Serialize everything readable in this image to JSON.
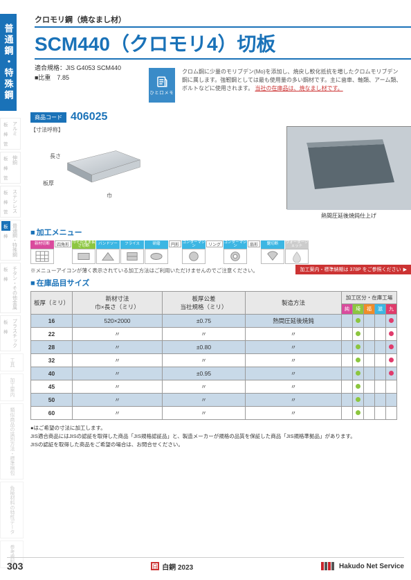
{
  "side_tab": "普通鋼・特殊鋼",
  "header": {
    "subtitle": "クロモリ鋼（焼なまし材）",
    "title": "SCM440（クロモリ4）切板",
    "spec1": "適合規格：JIS G4053 SCM440",
    "spec2": "■比重　7.85"
  },
  "memo": {
    "icon_label": "ひと口メモ",
    "text_main": "クロム鋼に少量のモリブデン(Mo)を添加し、焼戻し軟化抵抗を増したクロムモリブデン鋼に属します。強靭鋼としては最も使用量の多い鋼材です。主に歯車、軸類、アーム類、ボルトなどに使用されます。",
    "text_hl": "当社の在庫品は、焼なまし材です。"
  },
  "product_code": {
    "label": "商品コード",
    "value": "406025"
  },
  "dim_label": "【寸法呼称】",
  "dim_len": "長さ",
  "dim_wid": "巾",
  "dim_thk": "板厚",
  "photo_caption": "熱間圧延後焼鈍仕上げ",
  "sec_menu": "加工メニュー",
  "menu_groups": [
    "四角形",
    "円形",
    "リング",
    "扇形"
  ],
  "menu_items": [
    {
      "label": "新材切断",
      "color": "#d94b9d",
      "icon": "table"
    },
    {
      "label": "巾そのまま長さ切断",
      "color": "#8cc63f",
      "icon": "rect"
    },
    {
      "label": "バンドソー",
      "color": "#3cb6e3",
      "icon": "band"
    },
    {
      "label": "フライス",
      "color": "#3cb6e3",
      "icon": "mill"
    },
    {
      "label": "研磨",
      "color": "#3cb6e3",
      "icon": "grind"
    },
    {
      "label": "コンターマシン",
      "color": "#3cb6e3",
      "icon": "circle"
    },
    {
      "label": "コンターマシン",
      "color": "#3cb6e3",
      "icon": "ring"
    },
    {
      "label": "鋸切断",
      "color": "#3cb6e3",
      "icon": "fan"
    },
    {
      "label": "ウォータージェット",
      "color": "#cccccc",
      "icon": "water"
    }
  ],
  "menu_note": "※メニューアイコンが薄く表示されている加工方法はご利用いただけませんのでご注意ください。",
  "delivery_badge": "加工案内・標準納期は 378P をご参照ください",
  "sec_stock": "在庫品目サイズ",
  "table": {
    "headers": [
      "板厚（ミリ）",
      "新材寸法\n巾×長さ（ミリ）",
      "板厚公差\n当社規格（ミリ）",
      "製造方法",
      "加工区分・在庫工場"
    ],
    "sub_headers": [
      "純",
      "埼",
      "福",
      "滋",
      "九"
    ],
    "sub_colors": [
      "#d94b9d",
      "#8cc63f",
      "#f08c28",
      "#3cb6e3",
      "#e03c6c"
    ],
    "rows": [
      {
        "t": "16",
        "s": "520×2000",
        "tol": "±0.75",
        "m": "熱間圧延後焼鈍",
        "d": [
          false,
          true,
          false,
          false,
          true
        ]
      },
      {
        "t": "22",
        "s": "〃",
        "tol": "〃",
        "m": "〃",
        "d": [
          false,
          true,
          false,
          false,
          true
        ]
      },
      {
        "t": "28",
        "s": "〃",
        "tol": "±0.80",
        "m": "〃",
        "d": [
          false,
          true,
          false,
          false,
          true
        ]
      },
      {
        "t": "32",
        "s": "〃",
        "tol": "〃",
        "m": "〃",
        "d": [
          false,
          true,
          false,
          false,
          true
        ]
      },
      {
        "t": "40",
        "s": "〃",
        "tol": "±0.95",
        "m": "〃",
        "d": [
          false,
          true,
          false,
          false,
          true
        ]
      },
      {
        "t": "45",
        "s": "〃",
        "tol": "〃",
        "m": "〃",
        "d": [
          false,
          true,
          false,
          false,
          false
        ]
      },
      {
        "t": "50",
        "s": "〃",
        "tol": "〃",
        "m": "〃",
        "d": [
          false,
          true,
          false,
          false,
          false
        ]
      },
      {
        "t": "60",
        "s": "〃",
        "tol": "〃",
        "m": "〃",
        "d": [
          false,
          true,
          false,
          false,
          false
        ]
      }
    ]
  },
  "notes": [
    "●はご希望の寸法に加工します。",
    "JIS適合商品にはJISの認証を取得した商品「JIS規格認証品」と、製造メーカーが規格の品質を保証した商品「JIS規格準拠品」があります。",
    "JISの認証を取得した商品をご希望の場合は、お問合せください。"
  ],
  "side_cats": [
    {
      "name": "アルミ",
      "items": [
        "板",
        "棒",
        "管"
      ]
    },
    {
      "name": "伸銅",
      "items": [
        "板",
        "棒",
        "管"
      ]
    },
    {
      "name": "ステンレス",
      "items": [
        "板",
        "棒",
        "管"
      ]
    },
    {
      "name": "普通鋼・特殊鋼",
      "items": [
        "板",
        "棒"
      ],
      "active_idx": 0
    },
    {
      "name": "チタン・その他金属",
      "items": [
        "板",
        "棒"
      ]
    },
    {
      "name": "プラスチック",
      "items": [
        "板",
        "棒"
      ]
    }
  ],
  "side_singles": [
    "工具",
    "加工案内",
    "類似商品の識別方法・標準梱包",
    "負極材料の特性データ",
    "参考資料"
  ],
  "footer": {
    "page": "303",
    "center": "白銅 2023",
    "right": "Hakudo Net Service"
  },
  "colors": {
    "accent": "#1a72b8"
  }
}
